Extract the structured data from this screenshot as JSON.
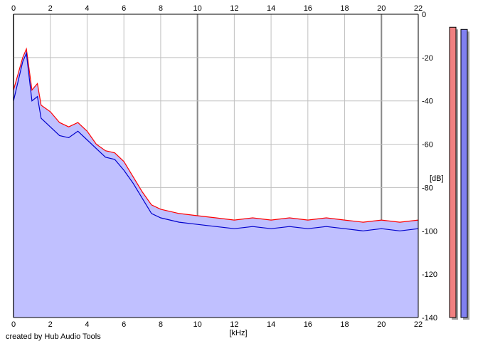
{
  "chart_data": {
    "type": "line",
    "title": "",
    "xlabel": "[kHz]",
    "ylabel": "[dB]",
    "x_ticks": [
      "0",
      "2",
      "4",
      "6",
      "8",
      "10",
      "12",
      "14",
      "16",
      "18",
      "20",
      "22"
    ],
    "y_ticks": [
      "0",
      "-20",
      "-40",
      "-60",
      "-80",
      "-100",
      "-120",
      "-140"
    ],
    "xlim": [
      0,
      22
    ],
    "ylim": [
      -140,
      0
    ],
    "grid": true,
    "series": [
      {
        "color": "#ff0000",
        "x": [
          0,
          0.5,
          0.7,
          1,
          1.3,
          1.5,
          2,
          2.5,
          3,
          3.5,
          4,
          4.5,
          5,
          5.5,
          6,
          6.5,
          7,
          7.5,
          8,
          9,
          10,
          11,
          12,
          13,
          14,
          15,
          16,
          17,
          18,
          19,
          20,
          21,
          22
        ],
        "y": [
          -35,
          -20,
          -16,
          -35,
          -32,
          -42,
          -45,
          -50,
          -52,
          -50,
          -54,
          -60,
          -63,
          -64,
          -68,
          -75,
          -82,
          -88,
          -90,
          -92,
          -93,
          -94,
          -95,
          -94,
          -95,
          -94,
          -95,
          -94,
          -95,
          -96,
          -95,
          -96,
          -95
        ]
      },
      {
        "color": "#0000cc",
        "x": [
          0,
          0.5,
          0.7,
          1,
          1.3,
          1.5,
          2,
          2.5,
          3,
          3.5,
          4,
          4.5,
          5,
          5.5,
          6,
          6.5,
          7,
          7.5,
          8,
          9,
          10,
          11,
          12,
          13,
          14,
          15,
          16,
          17,
          18,
          19,
          20,
          21,
          22
        ],
        "y": [
          -40,
          -22,
          -18,
          -40,
          -38,
          -48,
          -52,
          -56,
          -57,
          -54,
          -58,
          -62,
          -66,
          -67,
          -72,
          -78,
          -85,
          -92,
          -94,
          -96,
          -97,
          -98,
          -99,
          -98,
          -99,
          -98,
          -99,
          -98,
          -99,
          -100,
          -99,
          -100,
          -99
        ]
      }
    ],
    "fill_color": "#c0c0ff",
    "meters": [
      {
        "color": "#f08080",
        "level_db": -6
      },
      {
        "color": "#8080f0",
        "level_db": -7
      }
    ]
  },
  "footer": {
    "credit": "created by Hub Audio Tools"
  }
}
